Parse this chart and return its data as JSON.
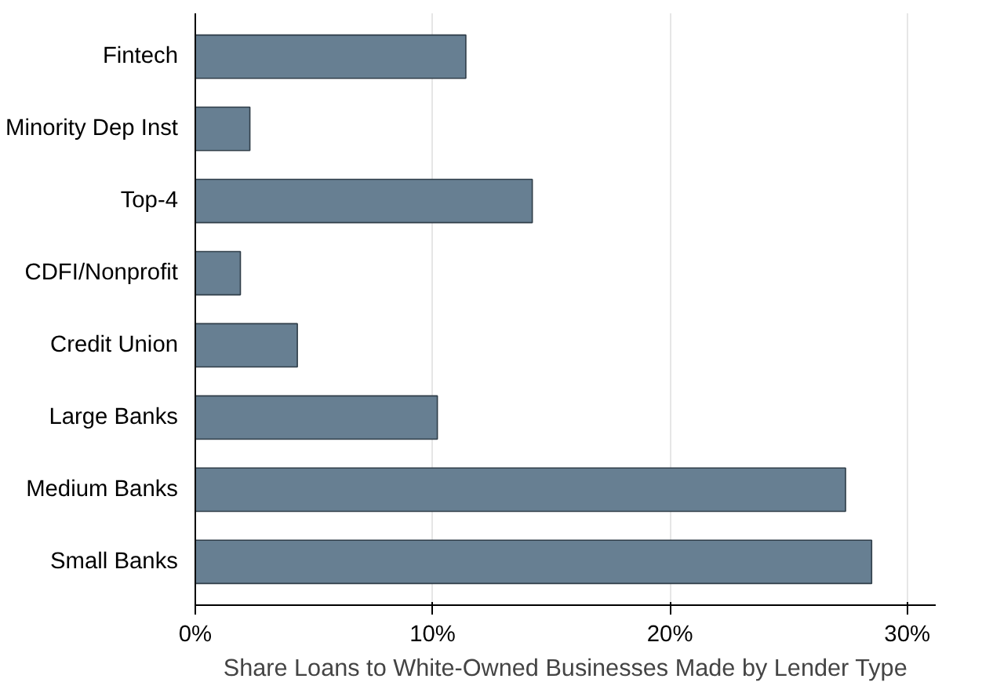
{
  "chart_data": {
    "type": "bar",
    "orientation": "horizontal",
    "categories": [
      "Fintech",
      "Minority Dep Inst",
      "Top-4",
      "CDFI/Nonprofit",
      "Credit Union",
      "Large Banks",
      "Medium Banks",
      "Small Banks"
    ],
    "values": [
      11.4,
      2.3,
      14.2,
      1.9,
      4.3,
      10.2,
      27.4,
      28.5
    ],
    "color": "#677f92",
    "xlabel": "Share Loans to White-Owned Businesses Made by Lender Type",
    "xlim": [
      0,
      31.2
    ],
    "xticks": [
      {
        "value": 0,
        "label": "0%"
      },
      {
        "value": 10,
        "label": "10%"
      },
      {
        "value": 20,
        "label": "20%"
      },
      {
        "value": 30,
        "label": "30%"
      }
    ],
    "grid": "x"
  }
}
